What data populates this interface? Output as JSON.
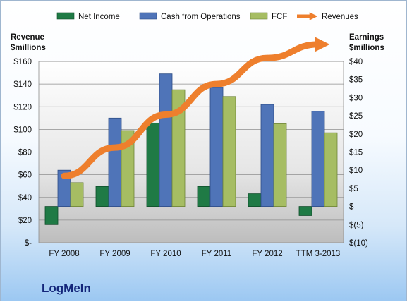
{
  "chart_data": {
    "type": "bar",
    "categories": [
      "FY 2008",
      "FY 2009",
      "FY 2010",
      "FY 2011",
      "FY 2012",
      "TTM 3-2013"
    ],
    "series": [
      {
        "name": "Net Income",
        "axis": "right",
        "color": "#1f7a45",
        "values": [
          -5.0,
          5.5,
          23.0,
          5.5,
          3.5,
          -2.5
        ]
      },
      {
        "name": "Cash from Operations",
        "axis": "left",
        "color": "#4f74b8",
        "values": [
          64,
          110,
          149,
          137,
          122,
          116
        ]
      },
      {
        "name": "FCF",
        "axis": "left",
        "color": "#a6bd63",
        "values": [
          53,
          99,
          135,
          129,
          105,
          97
        ]
      },
      {
        "name": "Revenues",
        "axis": "left",
        "color": "#ee7f2d",
        "type": "line",
        "values": [
          59,
          84,
          113,
          140,
          163,
          175
        ]
      }
    ],
    "y_left": {
      "label_line1": "Revenue",
      "label_line2": "$millions",
      "range": [
        0,
        160
      ],
      "ticks": [
        0,
        20,
        40,
        60,
        80,
        100,
        120,
        140,
        160
      ],
      "tick_labels": [
        "$-",
        "$20",
        "$40",
        "$60",
        "$80",
        "$100",
        "$120",
        "$140",
        "$160"
      ]
    },
    "y_right": {
      "label_line1": "Earnings",
      "label_line2": "$millions",
      "range": [
        -10,
        40
      ],
      "ticks": [
        -10,
        -5,
        0,
        5,
        10,
        15,
        20,
        25,
        30,
        35,
        40
      ],
      "tick_labels": [
        "$(10)",
        "$(5)",
        "$-",
        "$5",
        "$10",
        "$15",
        "$20",
        "$25",
        "$30",
        "$35",
        "$40"
      ]
    },
    "legend_position": "top",
    "grid": true
  },
  "company": "LogMeIn"
}
